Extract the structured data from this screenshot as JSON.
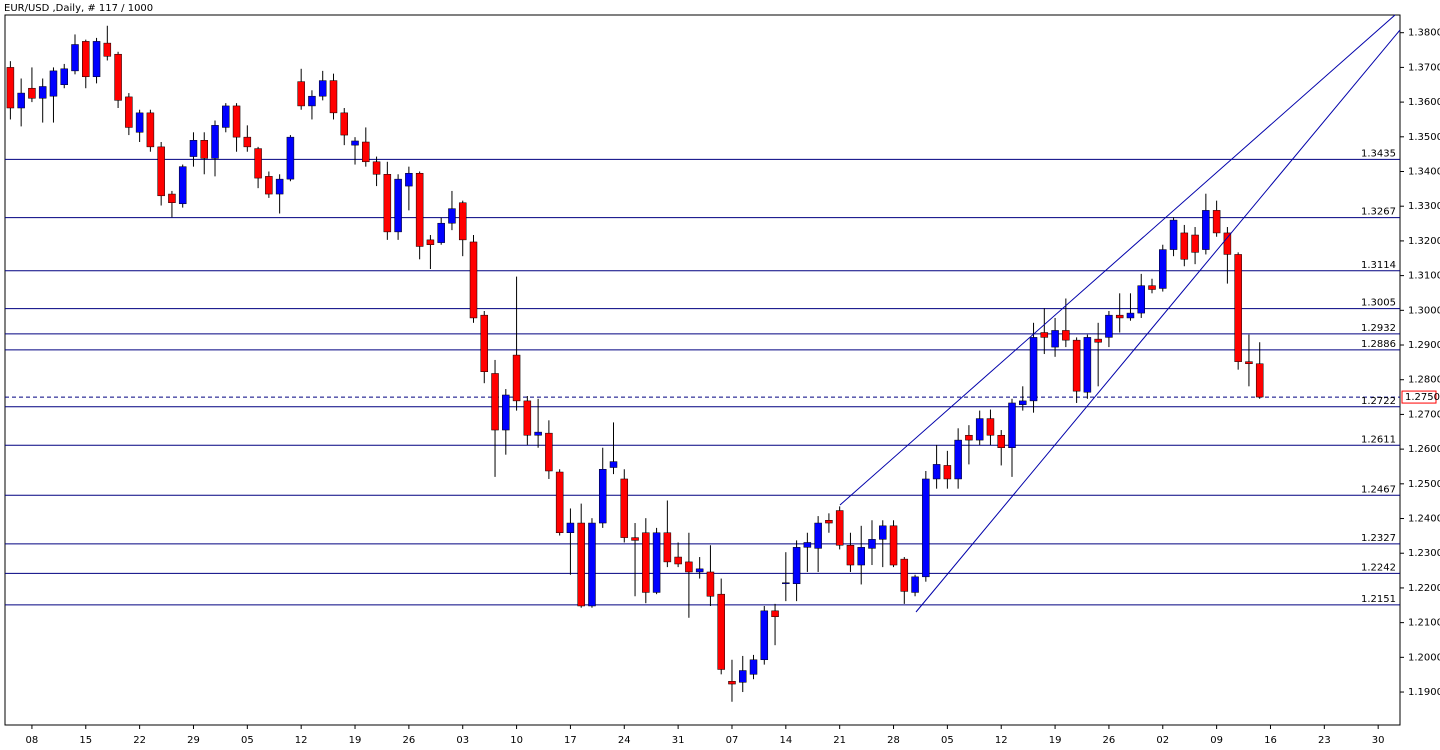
{
  "chart_data": {
    "type": "candlestick",
    "title": "EUR/USD ,Daily, # 117 / 1000",
    "up_color": "#0000ff",
    "down_color": "#ff0000",
    "level_color": "#000080",
    "last_color": "#ff0000",
    "categories": [
      null,
      null,
      "08",
      null,
      null,
      null,
      null,
      "15",
      null,
      null,
      null,
      null,
      "22",
      null,
      null,
      null,
      null,
      "29",
      null,
      null,
      null,
      null,
      "05",
      null,
      null,
      null,
      null,
      "12",
      null,
      null,
      null,
      null,
      "19",
      null,
      null,
      null,
      null,
      "26",
      null,
      null,
      null,
      null,
      "03",
      null,
      null,
      null,
      null,
      "10",
      null,
      null,
      null,
      null,
      "17",
      null,
      null,
      null,
      null,
      "24",
      null,
      null,
      null,
      null,
      "31",
      null,
      null,
      null,
      null,
      "07",
      null,
      null,
      null,
      null,
      "14",
      null,
      null,
      null,
      null,
      "21",
      null,
      null,
      null,
      null,
      "28",
      null,
      null,
      null,
      null,
      "05",
      null,
      null,
      null,
      null,
      "12",
      null,
      null,
      null,
      null,
      "19",
      null,
      null,
      null,
      null,
      "26",
      null,
      null,
      null,
      null,
      "02",
      null,
      null,
      null,
      null,
      "09",
      null,
      null,
      null,
      null,
      "16",
      null,
      null,
      null,
      null,
      "23",
      null,
      null,
      null,
      null,
      "30"
    ],
    "open": [
      1.37,
      1.3583,
      1.364,
      1.3611,
      1.3617,
      1.365,
      1.369,
      1.3775,
      1.3673,
      1.377,
      1.3738,
      1.3615,
      1.3513,
      1.3569,
      1.3471,
      1.3335,
      1.3307,
      1.3443,
      1.349,
      1.3438,
      1.3527,
      1.3589,
      1.3499,
      1.3466,
      1.3386,
      1.3335,
      1.3378,
      1.3659,
      1.3589,
      1.3617,
      1.3662,
      1.3569,
      1.3476,
      1.3485,
      1.3428,
      1.3392,
      1.3226,
      1.3358,
      1.3395,
      1.3203,
      1.3195,
      1.3251,
      1.331,
      1.3197,
      1.2986,
      1.2818,
      1.2655,
      1.2871,
      1.2739,
      1.264,
      1.2646,
      1.2534,
      1.2359,
      1.2387,
      1.2148,
      1.2387,
      1.2547,
      1.2514,
      1.2345,
      1.2359,
      1.2187,
      1.2359,
      1.2289,
      1.2275,
      1.2246,
      1.2246,
      1.2182,
      1.1931,
      1.1928,
      1.1951,
      1.1993,
      1.2134,
      1.2212,
      1.2212,
      1.2317,
      1.2314,
      1.2395,
      1.2423,
      1.2323,
      1.2266,
      1.2314,
      1.234,
      1.2379,
      1.2283,
      1.2187,
      1.2232,
      1.2514,
      1.2553,
      1.2514,
      1.264,
      1.2626,
      1.2688,
      1.264,
      1.2604,
      1.2728,
      1.2739,
      1.2936,
      1.2894,
      1.2942,
      1.2914,
      1.2764,
      1.2917,
      1.2922,
      1.2986,
      1.2978,
      1.2992,
      1.3071,
      1.3063,
      1.3175,
      1.3223,
      1.3217,
      1.3175,
      1.3288,
      1.3223,
      1.3161,
      1.2852,
      1.2846,
      null,
      null,
      null,
      null,
      null,
      null,
      null,
      null,
      null,
      null,
      null
    ],
    "high": [
      1.3718,
      1.3668,
      1.37,
      1.3668,
      1.37,
      1.371,
      1.3795,
      1.378,
      1.3785,
      1.382,
      1.3745,
      1.3626,
      1.3578,
      1.3578,
      1.3485,
      1.3344,
      1.342,
      1.3513,
      1.3513,
      1.3547,
      1.3597,
      1.3597,
      1.3533,
      1.3471,
      1.34,
      1.3392,
      1.3505,
      1.3696,
      1.3634,
      1.369,
      1.3682,
      1.3583,
      1.3499,
      1.3527,
      1.3443,
      1.3428,
      1.3392,
      1.3414,
      1.34,
      1.3217,
      1.3267,
      1.3344,
      1.3316,
      1.3217,
      1.2998,
      1.2857,
      1.2773,
      1.3097,
      1.2753,
      1.2745,
      1.2683,
      1.2542,
      1.2429,
      1.2443,
      1.2401,
      1.2604,
      1.2677,
      1.2542,
      1.2387,
      1.2401,
      1.2373,
      1.2452,
      1.2331,
      1.2359,
      1.2289,
      1.2323,
      1.2227,
      1.1993,
      1.2004,
      1.2007,
      1.2148,
      1.2154,
      1.2303,
      1.2337,
      1.2359,
      1.2407,
      1.2415,
      1.2435,
      1.2359,
      1.2379,
      1.2395,
      1.2395,
      1.2395,
      1.2289,
      1.2238,
      1.2537,
      1.2612,
      1.2595,
      1.266,
      1.2669,
      1.2711,
      1.2714,
      1.2655,
      1.2745,
      1.2781,
      1.2964,
      1.3006,
      1.2978,
      1.3034,
      1.2922,
      1.293,
      1.2964,
      1.2998,
      1.3049,
      1.3049,
      1.3105,
      1.3091,
      1.3189,
      1.3268,
      1.3246,
      1.324,
      1.3336,
      1.3316,
      1.324,
      1.3167,
      1.293,
      1.2908,
      null,
      null,
      null,
      null,
      null,
      null,
      null,
      null,
      null,
      null,
      null
    ],
    "low": [
      1.355,
      1.353,
      1.36,
      1.3541,
      1.3541,
      1.364,
      1.368,
      1.364,
      1.3654,
      1.372,
      1.3583,
      1.3505,
      1.3485,
      1.3457,
      1.3302,
      1.3268,
      1.3296,
      1.3414,
      1.3392,
      1.3386,
      1.3513,
      1.3457,
      1.3457,
      1.3352,
      1.3324,
      1.3279,
      1.3372,
      1.3578,
      1.355,
      1.3605,
      1.355,
      1.3476,
      1.342,
      1.3414,
      1.3358,
      1.3203,
      1.3203,
      1.3288,
      1.3147,
      1.3119,
      1.3189,
      1.3231,
      1.3156,
      1.2964,
      1.279,
      1.252,
      1.2584,
      1.2711,
      1.2612,
      1.2604,
      1.2514,
      1.2351,
      1.2238,
      1.2143,
      1.2143,
      1.2373,
      1.2528,
      1.2331,
      1.2176,
      1.2156,
      1.2182,
      1.226,
      1.226,
      1.2114,
      1.2227,
      1.2148,
      1.1951,
      1.1872,
      1.19,
      1.1937,
      1.1979,
      1.2035,
      1.2162,
      1.2162,
      1.2246,
      1.2246,
      1.2359,
      1.2311,
      1.2246,
      1.221,
      1.2266,
      1.226,
      1.226,
      1.2154,
      1.2176,
      1.2218,
      1.2486,
      1.2486,
      1.2486,
      1.2556,
      1.2612,
      1.2612,
      1.2553,
      1.252,
      1.2711,
      1.2705,
      1.2874,
      1.2866,
      1.2894,
      1.2733,
      1.2745,
      1.2781,
      1.2894,
      1.2936,
      1.297,
      1.2978,
      1.3049,
      1.3054,
      1.3156,
      1.3127,
      1.3133,
      1.3161,
      1.3212,
      1.3077,
      1.2829,
      1.2781,
      1.2745,
      null,
      null,
      null,
      null,
      null,
      null,
      null,
      null,
      null,
      null,
      null
    ],
    "close": [
      1.3583,
      1.3626,
      1.3611,
      1.3645,
      1.369,
      1.3696,
      1.3766,
      1.3673,
      1.3775,
      1.3732,
      1.3605,
      1.3527,
      1.3569,
      1.3471,
      1.333,
      1.331,
      1.3414,
      1.349,
      1.3438,
      1.3533,
      1.3589,
      1.3499,
      1.3471,
      1.3381,
      1.3335,
      1.3378,
      1.3499,
      1.3589,
      1.3617,
      1.3662,
      1.3569,
      1.3505,
      1.3488,
      1.3428,
      1.3392,
      1.3226,
      1.3378,
      1.3395,
      1.3184,
      1.3189,
      1.3251,
      1.3293,
      1.3203,
      1.2978,
      1.2823,
      1.2655,
      1.2756,
      1.2739,
      1.264,
      1.2649,
      1.2537,
      1.2359,
      1.2387,
      1.2148,
      1.2387,
      1.2542,
      1.2564,
      1.2345,
      1.2337,
      1.2187,
      1.2359,
      1.2275,
      1.2269,
      1.2246,
      1.2255,
      1.2176,
      1.1965,
      1.1923,
      1.1962,
      1.1993,
      1.2134,
      1.2117,
      1.2215,
      1.2317,
      1.2331,
      1.2387,
      1.2387,
      1.2323,
      1.2266,
      1.2317,
      1.234,
      1.2379,
      1.2266,
      1.219,
      1.2232,
      1.2514,
      1.2556,
      1.2514,
      1.2626,
      1.2626,
      1.2688,
      1.264,
      1.2604,
      1.2733,
      1.2739,
      1.2922,
      1.2922,
      1.2942,
      1.2914,
      1.2767,
      1.2922,
      1.2908,
      1.2986,
      1.2978,
      1.2992,
      1.3071,
      1.306,
      1.3175,
      1.326,
      1.3147,
      1.3167,
      1.3288,
      1.3223,
      1.3161,
      1.2852,
      1.2846,
      1.275,
      null,
      null,
      null,
      null,
      null,
      null,
      null,
      null,
      null,
      null,
      null
    ],
    "ylim": [
      1.1805,
      1.3851
    ],
    "yticks": [
      {
        "value": 1.19,
        "label": "1.1900"
      },
      {
        "value": 1.2,
        "label": "1.2000"
      },
      {
        "value": 1.21,
        "label": "1.2100"
      },
      {
        "value": 1.22,
        "label": "1.2200"
      },
      {
        "value": 1.23,
        "label": "1.2300"
      },
      {
        "value": 1.24,
        "label": "1.2400"
      },
      {
        "value": 1.25,
        "label": "1.2500"
      },
      {
        "value": 1.26,
        "label": "1.2600"
      },
      {
        "value": 1.27,
        "label": "1.2700"
      },
      {
        "value": 1.28,
        "label": "1.2800"
      },
      {
        "value": 1.29,
        "label": "1.2900"
      },
      {
        "value": 1.3,
        "label": "1.3000"
      },
      {
        "value": 1.31,
        "label": "1.3100"
      },
      {
        "value": 1.32,
        "label": "1.3200"
      },
      {
        "value": 1.33,
        "label": "1.3300"
      },
      {
        "value": 1.34,
        "label": "1.3400"
      },
      {
        "value": 1.35,
        "label": "1.3500"
      },
      {
        "value": 1.36,
        "label": "1.3600"
      },
      {
        "value": 1.37,
        "label": "1.3700"
      },
      {
        "value": 1.38,
        "label": "1.3800"
      }
    ],
    "levels": [
      1.3435,
      1.3267,
      1.3114,
      1.3005,
      1.2932,
      1.2886,
      1.2722,
      1.2611,
      1.2467,
      1.2327,
      1.2242,
      1.2151
    ],
    "last_price": {
      "value": 1.275,
      "label": "1.2750"
    }
  }
}
